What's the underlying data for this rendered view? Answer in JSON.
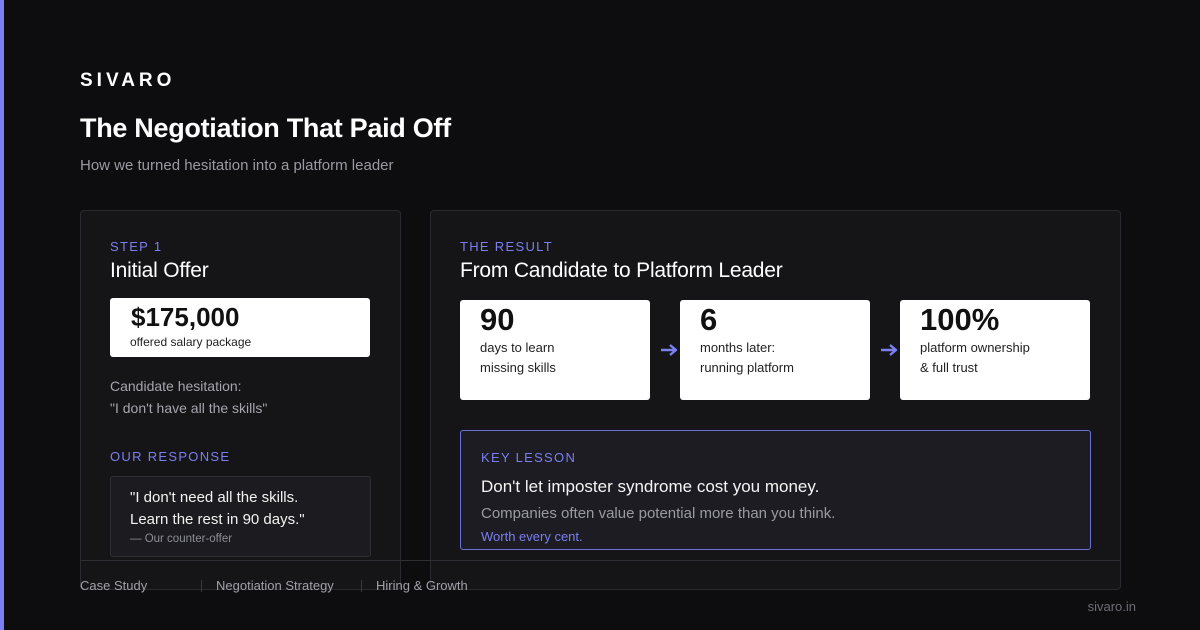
{
  "brand": "SIVARO",
  "title": "The Negotiation That Paid Off",
  "subtitle": "How we turned hesitation into a platform leader",
  "step1": {
    "eyebrow": "STEP 1",
    "title": "Initial Offer",
    "offer_amount": "$175,000",
    "offer_label": "offered salary package",
    "hesitation_label": "Candidate hesitation:",
    "hesitation_quote": "\"I don't have all the skills\""
  },
  "response": {
    "eyebrow": "OUR RESPONSE",
    "line1": "\"I don't need all the skills.",
    "line2": "Learn the rest in 90 days.\"",
    "attribution": "— Our counter-offer"
  },
  "result": {
    "eyebrow": "THE RESULT",
    "title": "From Candidate to Platform Leader",
    "stats": [
      {
        "value": "90",
        "line1": "days to learn",
        "line2": "missing skills"
      },
      {
        "value": "6",
        "line1": "months later:",
        "line2": "running platform"
      },
      {
        "value": "100%",
        "line1": "platform ownership",
        "line2": "& full trust"
      }
    ]
  },
  "lesson": {
    "eyebrow": "KEY LESSON",
    "main": "Don't let imposter syndrome cost you money.",
    "sub": "Companies often value potential more than you think.",
    "link": "Worth every cent."
  },
  "footer": {
    "tags": [
      "Case Study",
      "Negotiation Strategy",
      "Hiring & Growth"
    ],
    "domain": "sivaro.in"
  },
  "colors": {
    "accent": "#7b7ff0",
    "background": "#0d0d0f",
    "card": "#151518"
  },
  "icons": [
    "arrow-right-icon"
  ]
}
